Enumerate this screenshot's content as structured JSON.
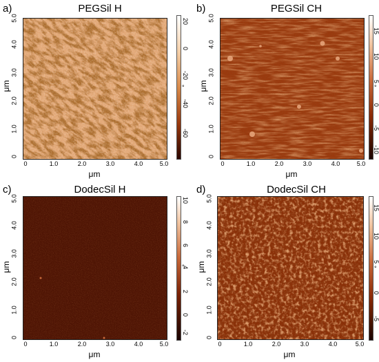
{
  "panels": [
    {
      "letter": "a)",
      "title": "PEGSil H",
      "x_ticks": [
        "0",
        "1.0",
        "2.0",
        "3.0",
        "4.0",
        "5.0"
      ],
      "y_ticks": [
        "0",
        "1.0",
        "2.0",
        "3.0",
        "4.0",
        "5.0"
      ],
      "x_unit": "μm",
      "y_unit": "μm",
      "cbar_ticks": [
        "20",
        "0",
        "-20",
        "-40",
        "-60"
      ],
      "cbar_unit": "°",
      "colors": {
        "base": "#e2a877",
        "dark": "#6a2a08",
        "light": "#f6d8b6"
      }
    },
    {
      "letter": "b)",
      "title": "PEGSil CH",
      "x_ticks": [
        "0",
        "1.0",
        "2.0",
        "3.0",
        "4.0",
        "5.0"
      ],
      "y_ticks": [
        "0",
        "1.0",
        "2.0",
        "3.0",
        "4.0",
        "5.0"
      ],
      "x_unit": "μm",
      "y_unit": "μm",
      "cbar_ticks": [
        "15",
        "10",
        "5",
        "0",
        "-5",
        "-10"
      ],
      "cbar_unit": "°",
      "colors": {
        "base": "#9a3a0e",
        "dark": "#5a1a04",
        "light": "#c8693a"
      }
    },
    {
      "letter": "c)",
      "title": "DodecSil H",
      "x_ticks": [
        "0",
        "1.0",
        "2.0",
        "3.0",
        "4.0",
        "5.0"
      ],
      "y_ticks": [
        "0",
        "1.0",
        "2.0",
        "3.0",
        "4.0",
        "5.0"
      ],
      "x_unit": "μm",
      "y_unit": "μm",
      "cbar_ticks": [
        "10",
        "8",
        "6",
        "4",
        "2",
        "0",
        "-2"
      ],
      "cbar_unit": "°",
      "colors": {
        "base": "#4e1404",
        "dark": "#3a0c02",
        "light": "#6a2208"
      }
    },
    {
      "letter": "d)",
      "title": "DodecSil CH",
      "x_ticks": [
        "0",
        "1.0",
        "2.0",
        "3.0",
        "4.0",
        "5.0"
      ],
      "y_ticks": [
        "0",
        "1.0",
        "2.0",
        "3.0",
        "4.0",
        "5.0"
      ],
      "x_unit": "μm",
      "y_unit": "μm",
      "cbar_ticks": [
        "15",
        "10",
        "5",
        "0",
        "-5"
      ],
      "cbar_unit": "°",
      "colors": {
        "base": "#8a3008",
        "dark": "#5e1c04",
        "light": "#c2602a"
      }
    }
  ]
}
